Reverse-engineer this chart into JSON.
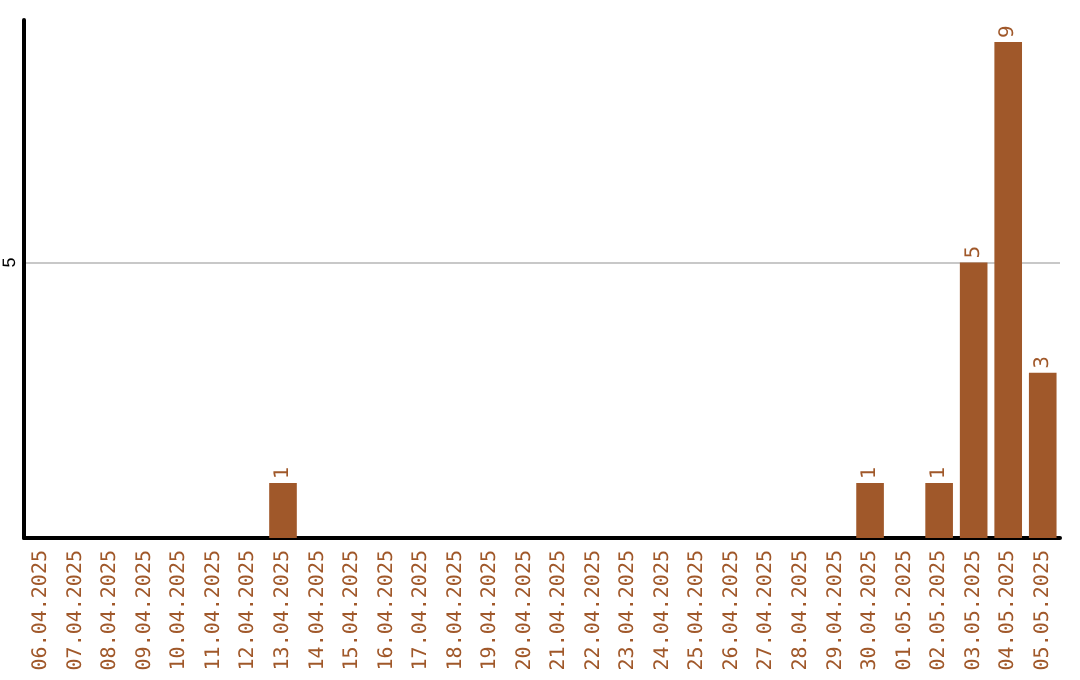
{
  "chart_data": {
    "type": "bar",
    "categories": [
      "06.04.2025",
      "07.04.2025",
      "08.04.2025",
      "09.04.2025",
      "10.04.2025",
      "11.04.2025",
      "12.04.2025",
      "13.04.2025",
      "14.04.2025",
      "15.04.2025",
      "16.04.2025",
      "17.04.2025",
      "18.04.2025",
      "19.04.2025",
      "20.04.2025",
      "21.04.2025",
      "22.04.2025",
      "23.04.2025",
      "24.04.2025",
      "25.04.2025",
      "26.04.2025",
      "27.04.2025",
      "28.04.2025",
      "29.04.2025",
      "30.04.2025",
      "01.05.2025",
      "02.05.2025",
      "03.05.2025",
      "04.05.2025",
      "05.05.2025"
    ],
    "values": [
      0,
      0,
      0,
      0,
      0,
      0,
      0,
      1,
      0,
      0,
      0,
      0,
      0,
      0,
      0,
      0,
      0,
      0,
      0,
      0,
      0,
      0,
      0,
      0,
      1,
      0,
      1,
      5,
      9,
      3
    ],
    "value_labels": [
      null,
      null,
      null,
      null,
      null,
      null,
      null,
      "1",
      null,
      null,
      null,
      null,
      null,
      null,
      null,
      null,
      null,
      null,
      null,
      null,
      null,
      null,
      null,
      null,
      "1",
      null,
      "1",
      "5",
      "9",
      "3"
    ],
    "color": "#a0582a",
    "ylim": [
      0,
      9.4
    ],
    "yticks": [
      5
    ],
    "grid": "y"
  }
}
